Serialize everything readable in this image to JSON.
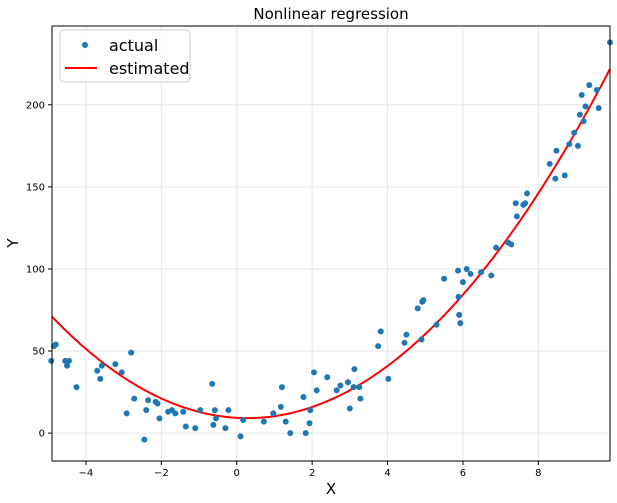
{
  "chart_data": {
    "type": "scatter",
    "title": "Nonlinear regression",
    "xlabel": "X",
    "ylabel": "Y",
    "xlim": [
      -4.9,
      9.9
    ],
    "ylim": [
      -17,
      248
    ],
    "xticks": [
      -4,
      -2,
      0,
      2,
      4,
      6,
      8
    ],
    "yticks": [
      0,
      50,
      100,
      150,
      200
    ],
    "xtick_labels": [
      "−4",
      "−2",
      "0",
      "2",
      "4",
      "6",
      "8"
    ],
    "ytick_labels": [
      "0",
      "50",
      "100",
      "150",
      "200"
    ],
    "grid": true,
    "legend_position": "top-left",
    "colors": {
      "actual": "#1f77b4",
      "estimated": "#ff0000",
      "grid": "#e6e6e6"
    },
    "series": [
      {
        "name": "actual",
        "kind": "scatter",
        "points": [
          [
            -4.92,
            44
          ],
          [
            -4.85,
            53
          ],
          [
            -4.8,
            54
          ],
          [
            -4.55,
            44
          ],
          [
            -4.5,
            41
          ],
          [
            -4.45,
            44
          ],
          [
            -4.25,
            28
          ],
          [
            -3.7,
            38
          ],
          [
            -3.62,
            33
          ],
          [
            -3.58,
            41
          ],
          [
            -3.22,
            42
          ],
          [
            -3.05,
            37
          ],
          [
            -2.92,
            12
          ],
          [
            -2.8,
            49
          ],
          [
            -2.72,
            21
          ],
          [
            -2.45,
            -4
          ],
          [
            -2.4,
            14
          ],
          [
            -2.35,
            20
          ],
          [
            -2.15,
            19
          ],
          [
            -2.1,
            18
          ],
          [
            -2.05,
            9
          ],
          [
            -1.82,
            13
          ],
          [
            -1.72,
            14
          ],
          [
            -1.63,
            12
          ],
          [
            -1.42,
            13
          ],
          [
            -1.35,
            4
          ],
          [
            -1.1,
            3
          ],
          [
            -0.97,
            14
          ],
          [
            -0.65,
            30
          ],
          [
            -0.62,
            5
          ],
          [
            -0.58,
            14
          ],
          [
            -0.55,
            9
          ],
          [
            -0.3,
            3
          ],
          [
            -0.22,
            14
          ],
          [
            0.1,
            -2
          ],
          [
            0.17,
            8
          ],
          [
            0.72,
            7
          ],
          [
            0.97,
            12
          ],
          [
            1.17,
            16
          ],
          [
            1.2,
            28
          ],
          [
            1.3,
            7
          ],
          [
            1.42,
            0
          ],
          [
            1.77,
            22
          ],
          [
            1.83,
            0
          ],
          [
            1.93,
            6
          ],
          [
            1.95,
            14
          ],
          [
            2.05,
            37
          ],
          [
            2.12,
            26
          ],
          [
            2.4,
            34
          ],
          [
            2.65,
            26
          ],
          [
            2.75,
            29
          ],
          [
            2.95,
            31
          ],
          [
            3.0,
            15
          ],
          [
            3.1,
            28
          ],
          [
            3.12,
            39
          ],
          [
            3.25,
            28
          ],
          [
            3.28,
            21
          ],
          [
            3.75,
            53
          ],
          [
            3.82,
            62
          ],
          [
            4.02,
            33
          ],
          [
            4.45,
            55
          ],
          [
            4.5,
            60
          ],
          [
            4.8,
            76
          ],
          [
            4.9,
            57
          ],
          [
            4.92,
            80
          ],
          [
            4.95,
            81
          ],
          [
            5.3,
            66
          ],
          [
            5.5,
            94
          ],
          [
            5.87,
            99
          ],
          [
            5.88,
            83
          ],
          [
            5.9,
            72
          ],
          [
            5.93,
            67
          ],
          [
            6.0,
            92
          ],
          [
            6.1,
            100
          ],
          [
            6.2,
            97
          ],
          [
            6.48,
            98
          ],
          [
            6.75,
            96
          ],
          [
            6.88,
            113
          ],
          [
            7.2,
            116
          ],
          [
            7.28,
            115
          ],
          [
            7.4,
            140
          ],
          [
            7.43,
            132
          ],
          [
            7.6,
            139
          ],
          [
            7.65,
            140
          ],
          [
            7.7,
            146
          ],
          [
            8.3,
            164
          ],
          [
            8.45,
            155
          ],
          [
            8.48,
            172
          ],
          [
            8.7,
            157
          ],
          [
            8.82,
            176
          ],
          [
            8.95,
            183
          ],
          [
            9.05,
            175
          ],
          [
            9.1,
            194
          ],
          [
            9.15,
            206
          ],
          [
            9.2,
            190
          ],
          [
            9.25,
            199
          ],
          [
            9.35,
            212
          ],
          [
            9.55,
            209
          ],
          [
            9.6,
            198
          ],
          [
            9.9,
            238
          ]
        ]
      },
      {
        "name": "estimated",
        "kind": "line",
        "curve": {
          "form": "quadratic",
          "a": 2.3,
          "b": -1.3,
          "c": 9.3
        },
        "x_range": [
          -4.9,
          9.9
        ]
      }
    ]
  }
}
